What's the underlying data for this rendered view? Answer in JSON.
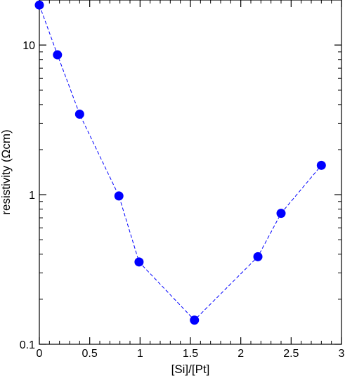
{
  "chart_data": {
    "type": "scatter",
    "xlabel": "[Si]/[Pt]",
    "ylabel": "resistivity (Ωcm)",
    "xlim": [
      0,
      3
    ],
    "ylim": [
      0.1,
      20
    ],
    "yscale": "log",
    "grid": false,
    "x_major_ticks": [
      0,
      0.5,
      1,
      1.5,
      2,
      2.5,
      3
    ],
    "x_tick_labels": [
      "0",
      "0.5",
      "1",
      "1.5",
      "2",
      "2.5",
      "3"
    ],
    "y_major_ticks": [
      0.1,
      1,
      10
    ],
    "y_tick_labels": [
      "0.1",
      "1",
      "10"
    ],
    "series": [
      {
        "marker": "circle",
        "line_style": "dashed",
        "color": "#0000ff",
        "x": [
          0.0,
          0.18,
          0.4,
          0.79,
          0.99,
          1.54,
          2.17,
          2.4,
          2.8
        ],
        "y": [
          18.5,
          8.6,
          3.45,
          0.98,
          0.355,
          0.145,
          0.385,
          0.75,
          1.57
        ]
      }
    ]
  }
}
